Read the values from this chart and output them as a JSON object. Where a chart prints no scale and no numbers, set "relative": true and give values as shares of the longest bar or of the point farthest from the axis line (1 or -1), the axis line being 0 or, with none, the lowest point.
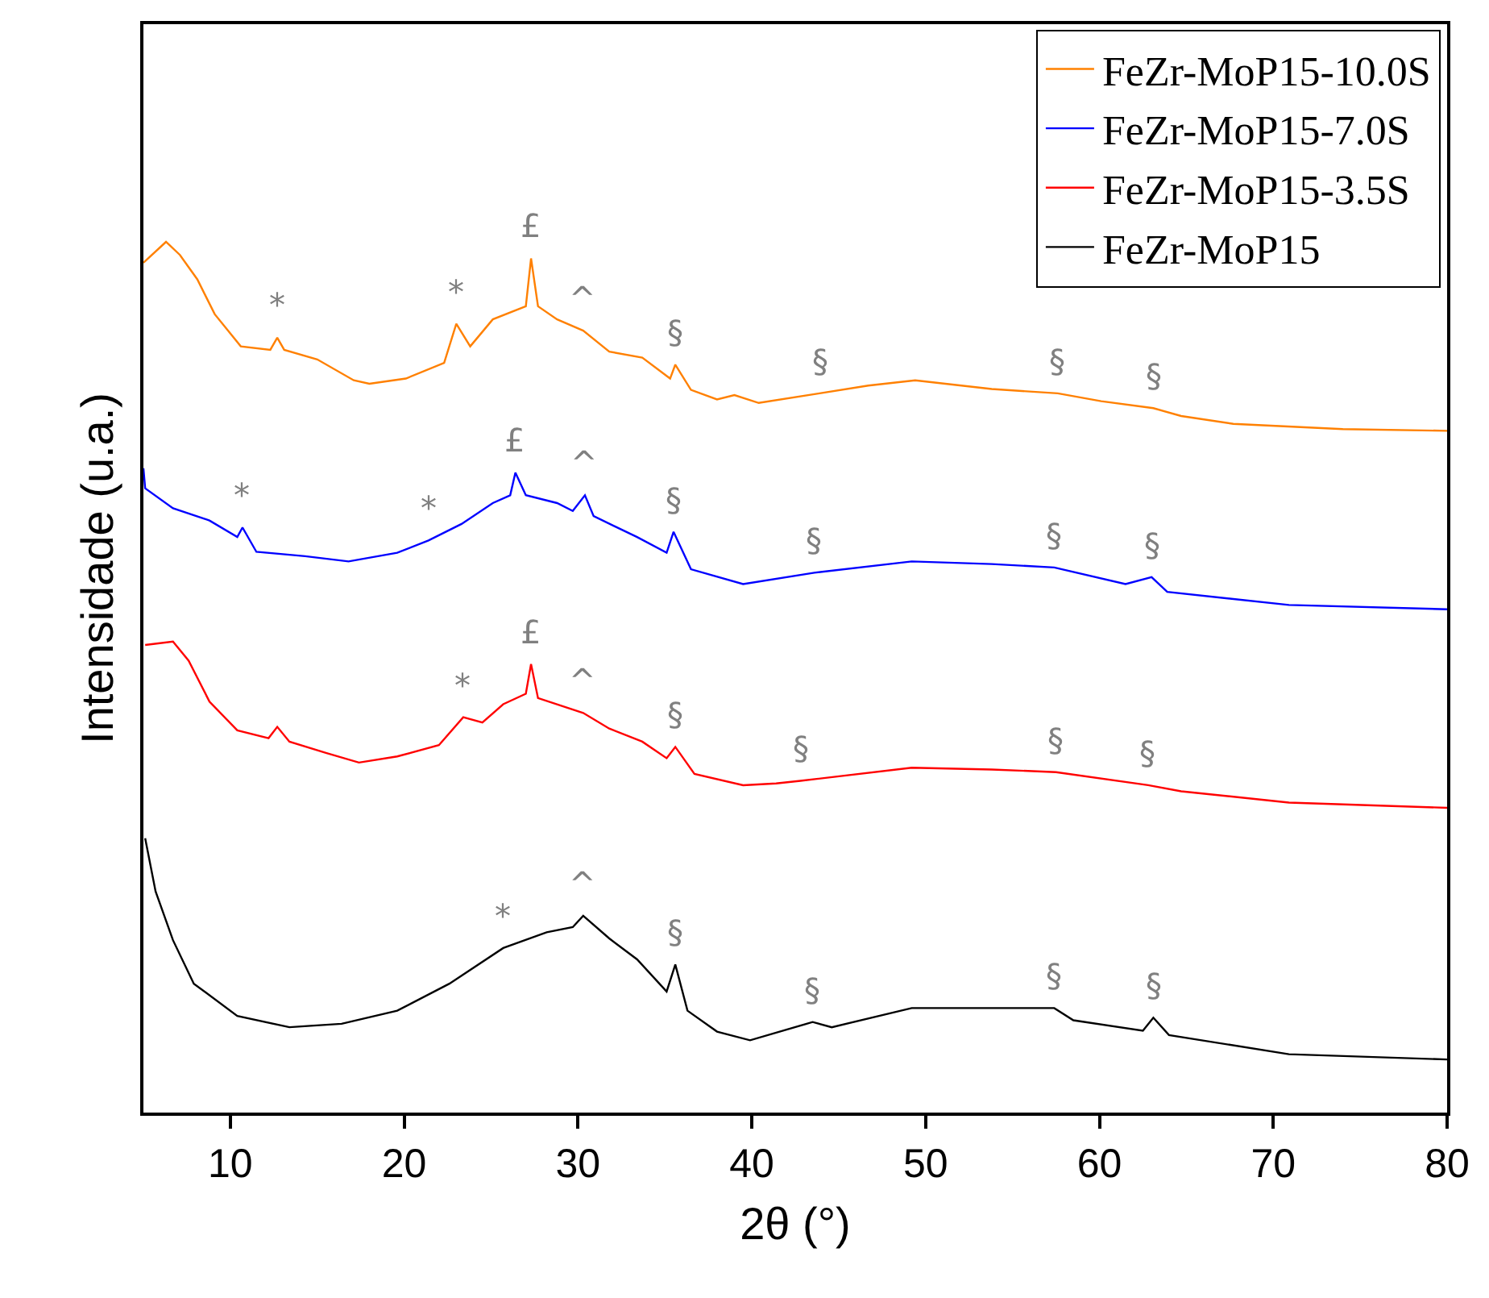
{
  "chart_data": {
    "type": "line",
    "relative": true,
    "xlabel": "2θ (°)",
    "ylabel": "Intensidade (u.a.)",
    "xlim": [
      5,
      80
    ],
    "xticks": [
      10,
      20,
      30,
      40,
      50,
      60,
      70,
      80
    ],
    "legend": "top right",
    "marker": "none",
    "line_style": "solid",
    "series": [
      {
        "name": "FeZr-MoP15-10.0S",
        "color": "#ff8000",
        "x": [
          5,
          6.3,
          7.1,
          8.1,
          9.1,
          10.6,
          12.3,
          12.7,
          13.1,
          15.0,
          17.1,
          18.0,
          20.1,
          22.3,
          23.0,
          23.8,
          25.1,
          27.0,
          27.3,
          27.7,
          28.8,
          30.3,
          31.8,
          33.7,
          35.3,
          35.6,
          36.5,
          38.0,
          39.0,
          40.4,
          43.9,
          46.7,
          49.4,
          53.8,
          57.6,
          60.1,
          63.1,
          64.7,
          67.7,
          74.0,
          80
        ],
        "values": [
          0.976,
          1.0,
          0.985,
          0.957,
          0.917,
          0.88,
          0.876,
          0.89,
          0.876,
          0.865,
          0.841,
          0.837,
          0.843,
          0.861,
          0.906,
          0.88,
          0.911,
          0.926,
          0.981,
          0.926,
          0.911,
          0.898,
          0.874,
          0.867,
          0.843,
          0.859,
          0.83,
          0.819,
          0.824,
          0.815,
          0.826,
          0.835,
          0.841,
          0.831,
          0.826,
          0.817,
          0.809,
          0.8,
          0.791,
          0.785,
          0.783
        ]
      },
      {
        "name": "FeZr-MoP15-7.0S",
        "color": "#0000ff",
        "x": [
          5,
          5.1,
          6.7,
          8.8,
          10.4,
          10.7,
          11.5,
          14.3,
          16.8,
          19.6,
          21.4,
          23.3,
          25.1,
          26.1,
          26.4,
          27.0,
          28.8,
          29.7,
          30.4,
          30.9,
          33.4,
          35.1,
          35.5,
          36.5,
          39.5,
          43.6,
          49.2,
          53.8,
          57.4,
          61.5,
          63.0,
          63.9,
          70.9,
          80
        ],
        "values": [
          0.74,
          0.717,
          0.694,
          0.68,
          0.661,
          0.672,
          0.644,
          0.639,
          0.633,
          0.643,
          0.657,
          0.676,
          0.7,
          0.709,
          0.735,
          0.709,
          0.7,
          0.691,
          0.709,
          0.685,
          0.661,
          0.643,
          0.667,
          0.624,
          0.607,
          0.62,
          0.633,
          0.63,
          0.626,
          0.607,
          0.615,
          0.598,
          0.583,
          0.578
        ]
      },
      {
        "name": "FeZr-MoP15-3.5S",
        "color": "#ff0000",
        "x": [
          5.1,
          6.7,
          7.6,
          8.8,
          10.4,
          12.2,
          12.7,
          13.4,
          15.5,
          17.4,
          19.6,
          22.0,
          23.4,
          24.5,
          25.7,
          27.0,
          27.3,
          27.7,
          30.3,
          31.8,
          33.7,
          35.1,
          35.6,
          36.7,
          39.5,
          41.4,
          42.8,
          49.2,
          53.8,
          57.5,
          62.8,
          64.7,
          70.9,
          80
        ],
        "values": [
          0.537,
          0.541,
          0.519,
          0.472,
          0.439,
          0.43,
          0.443,
          0.426,
          0.413,
          0.402,
          0.409,
          0.422,
          0.454,
          0.448,
          0.469,
          0.481,
          0.515,
          0.476,
          0.459,
          0.441,
          0.426,
          0.407,
          0.42,
          0.389,
          0.376,
          0.378,
          0.381,
          0.396,
          0.394,
          0.391,
          0.376,
          0.369,
          0.356,
          0.35
        ]
      },
      {
        "name": "FeZr-MoP15",
        "color": "#000000",
        "x": [
          5.1,
          5.7,
          6.7,
          7.9,
          10.4,
          13.4,
          16.4,
          19.6,
          22.6,
          25.7,
          28.2,
          29.7,
          30.3,
          31.8,
          33.4,
          35.1,
          35.6,
          36.3,
          38.0,
          39.9,
          43.5,
          44.6,
          49.2,
          53.8,
          57.4,
          58.5,
          62.5,
          63.1,
          64.0,
          70.9,
          80
        ],
        "values": [
          0.315,
          0.254,
          0.198,
          0.148,
          0.111,
          0.098,
          0.102,
          0.117,
          0.148,
          0.189,
          0.207,
          0.213,
          0.226,
          0.2,
          0.176,
          0.139,
          0.17,
          0.117,
          0.093,
          0.083,
          0.104,
          0.098,
          0.12,
          0.12,
          0.12,
          0.106,
          0.094,
          0.109,
          0.089,
          0.067,
          0.061
        ]
      }
    ],
    "annotations": [
      {
        "text": "*",
        "x": 12.7,
        "y": 0.89
      },
      {
        "text": "*",
        "x": 23.0,
        "y": 0.906
      },
      {
        "text": "£",
        "x": 27.3,
        "y": 0.981
      },
      {
        "text": "^",
        "x": 30.3,
        "y": 0.898
      },
      {
        "text": "§",
        "x": 35.6,
        "y": 0.859
      },
      {
        "text": "§",
        "x": 43.9,
        "y": 0.826
      },
      {
        "text": "§",
        "x": 57.6,
        "y": 0.826
      },
      {
        "text": "§",
        "x": 63.1,
        "y": 0.809
      },
      {
        "text": "*",
        "x": 10.7,
        "y": 0.672
      },
      {
        "text": "*",
        "x": 21.4,
        "y": 0.657
      },
      {
        "text": "£",
        "x": 26.4,
        "y": 0.735
      },
      {
        "text": "^",
        "x": 30.4,
        "y": 0.709
      },
      {
        "text": "§",
        "x": 35.5,
        "y": 0.667
      },
      {
        "text": "§",
        "x": 43.6,
        "y": 0.62
      },
      {
        "text": "§",
        "x": 57.4,
        "y": 0.626
      },
      {
        "text": "§",
        "x": 63.0,
        "y": 0.615
      },
      {
        "text": "*",
        "x": 23.4,
        "y": 0.454
      },
      {
        "text": "£",
        "x": 27.3,
        "y": 0.515
      },
      {
        "text": "^",
        "x": 30.3,
        "y": 0.459
      },
      {
        "text": "§",
        "x": 35.6,
        "y": 0.42
      },
      {
        "text": "§",
        "x": 42.8,
        "y": 0.381
      },
      {
        "text": "§",
        "x": 57.5,
        "y": 0.391
      },
      {
        "text": "§",
        "x": 62.8,
        "y": 0.376
      },
      {
        "text": "*",
        "x": 25.7,
        "y": 0.189
      },
      {
        "text": "^",
        "x": 30.3,
        "y": 0.226
      },
      {
        "text": "§",
        "x": 35.6,
        "y": 0.17
      },
      {
        "text": "§",
        "x": 43.5,
        "y": 0.104
      },
      {
        "text": "§",
        "x": 57.4,
        "y": 0.12
      },
      {
        "text": "§",
        "x": 63.1,
        "y": 0.109
      }
    ]
  }
}
